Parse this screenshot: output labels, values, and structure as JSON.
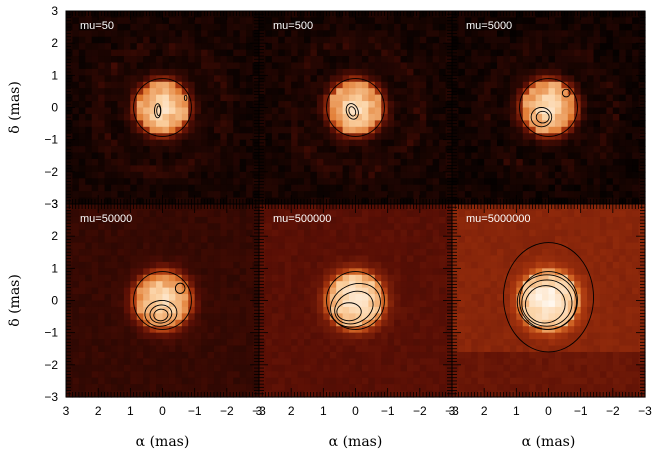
{
  "figure": {
    "x_axis_title": "α (mas)",
    "y_axis_title": "δ (mas)"
  },
  "panels": [
    {
      "label": "mu=50"
    },
    {
      "label": "mu=500"
    },
    {
      "label": "mu=5000"
    },
    {
      "label": "mu=50000"
    },
    {
      "label": "mu=500000"
    },
    {
      "label": "mu=5000000"
    }
  ],
  "chart_data": {
    "type": "heatmap",
    "grid": "3x2",
    "xlabel": "α (mas)",
    "ylabel": "δ (mas)",
    "xlim": [
      3,
      -3
    ],
    "ylim": [
      -3,
      3
    ],
    "x_ticks": [
      "3",
      "2",
      "1",
      "0",
      "−1",
      "−2",
      "−3"
    ],
    "y_ticks": [
      "−3",
      "−2",
      "−1",
      "0",
      "1",
      "2",
      "3"
    ],
    "colormap": [
      "#000000",
      "#5a0f05",
      "#a8350e",
      "#e0782f",
      "#fbd0a0",
      "#fff8f0"
    ],
    "source_radius_mas": 0.85,
    "series": [
      {
        "name": "mu=50",
        "background_level": 0.05
      },
      {
        "name": "mu=500",
        "background_level": 0.05
      },
      {
        "name": "mu=5000",
        "background_level": 0.04
      },
      {
        "name": "mu=50000",
        "background_level": 0.12
      },
      {
        "name": "mu=500000",
        "background_level": 0.2
      },
      {
        "name": "mu=5000000",
        "background_level": 0.32
      }
    ]
  }
}
